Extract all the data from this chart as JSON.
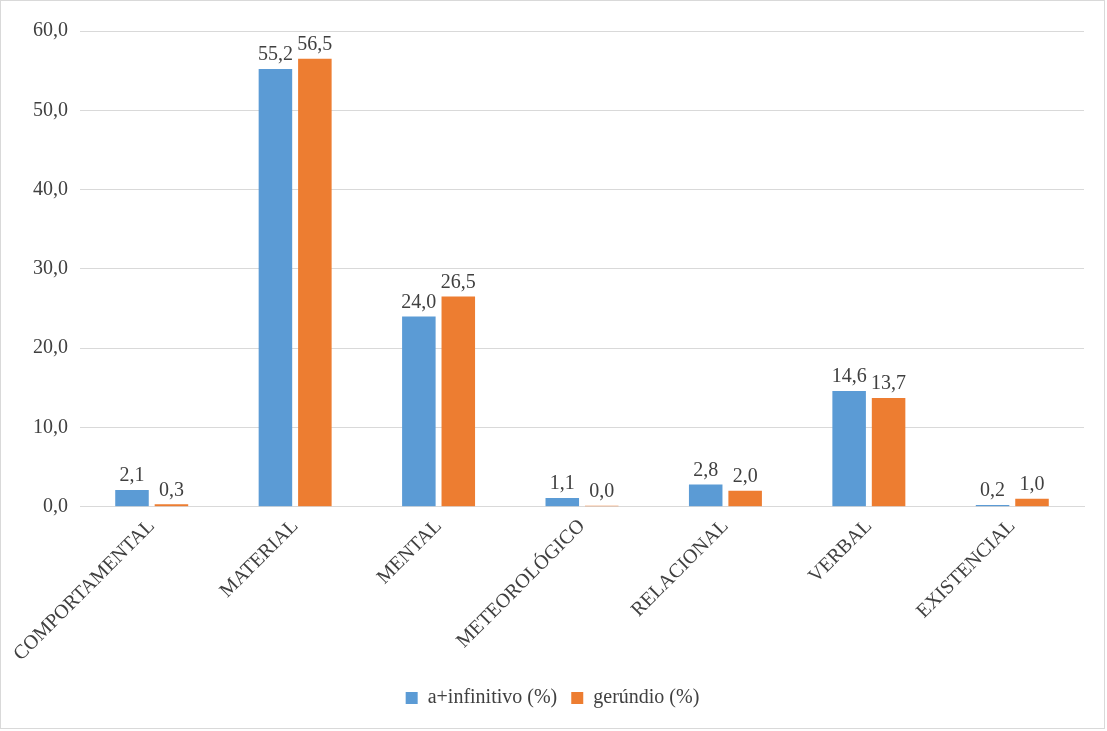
{
  "chart_data": {
    "type": "bar",
    "categories": [
      "COMPORTAMENTAL",
      "MATERIAL",
      "MENTAL",
      "METEOROLÓGICO",
      "RELACIONAL",
      "VERBAL",
      "EXISTENCIAL"
    ],
    "series": [
      {
        "name": "a+infinitivo (%)",
        "color": "#5b9bd5",
        "values": [
          2.1,
          55.2,
          24.0,
          1.1,
          2.8,
          14.6,
          0.2
        ],
        "value_labels": [
          "2,1",
          "55,2",
          "24,0",
          "1,1",
          "2,8",
          "14,6",
          "0,2"
        ]
      },
      {
        "name": "gerúndio (%)",
        "color": "#ed7d31",
        "values": [
          0.3,
          56.5,
          26.5,
          0.0,
          2.0,
          13.7,
          1.0
        ],
        "value_labels": [
          "0,3",
          "56,5",
          "26,5",
          "0,0",
          "2,0",
          "13,7",
          "1,0"
        ]
      }
    ],
    "ylim": [
      0,
      60
    ],
    "yticks": [
      {
        "value": 0,
        "label": "0,0"
      },
      {
        "value": 10,
        "label": "10,0"
      },
      {
        "value": 20,
        "label": "20,0"
      },
      {
        "value": 30,
        "label": "30,0"
      },
      {
        "value": 40,
        "label": "40,0"
      },
      {
        "value": 50,
        "label": "50,0"
      },
      {
        "value": 60,
        "label": "60,0"
      }
    ],
    "grid": "y",
    "legend": "bottom"
  }
}
